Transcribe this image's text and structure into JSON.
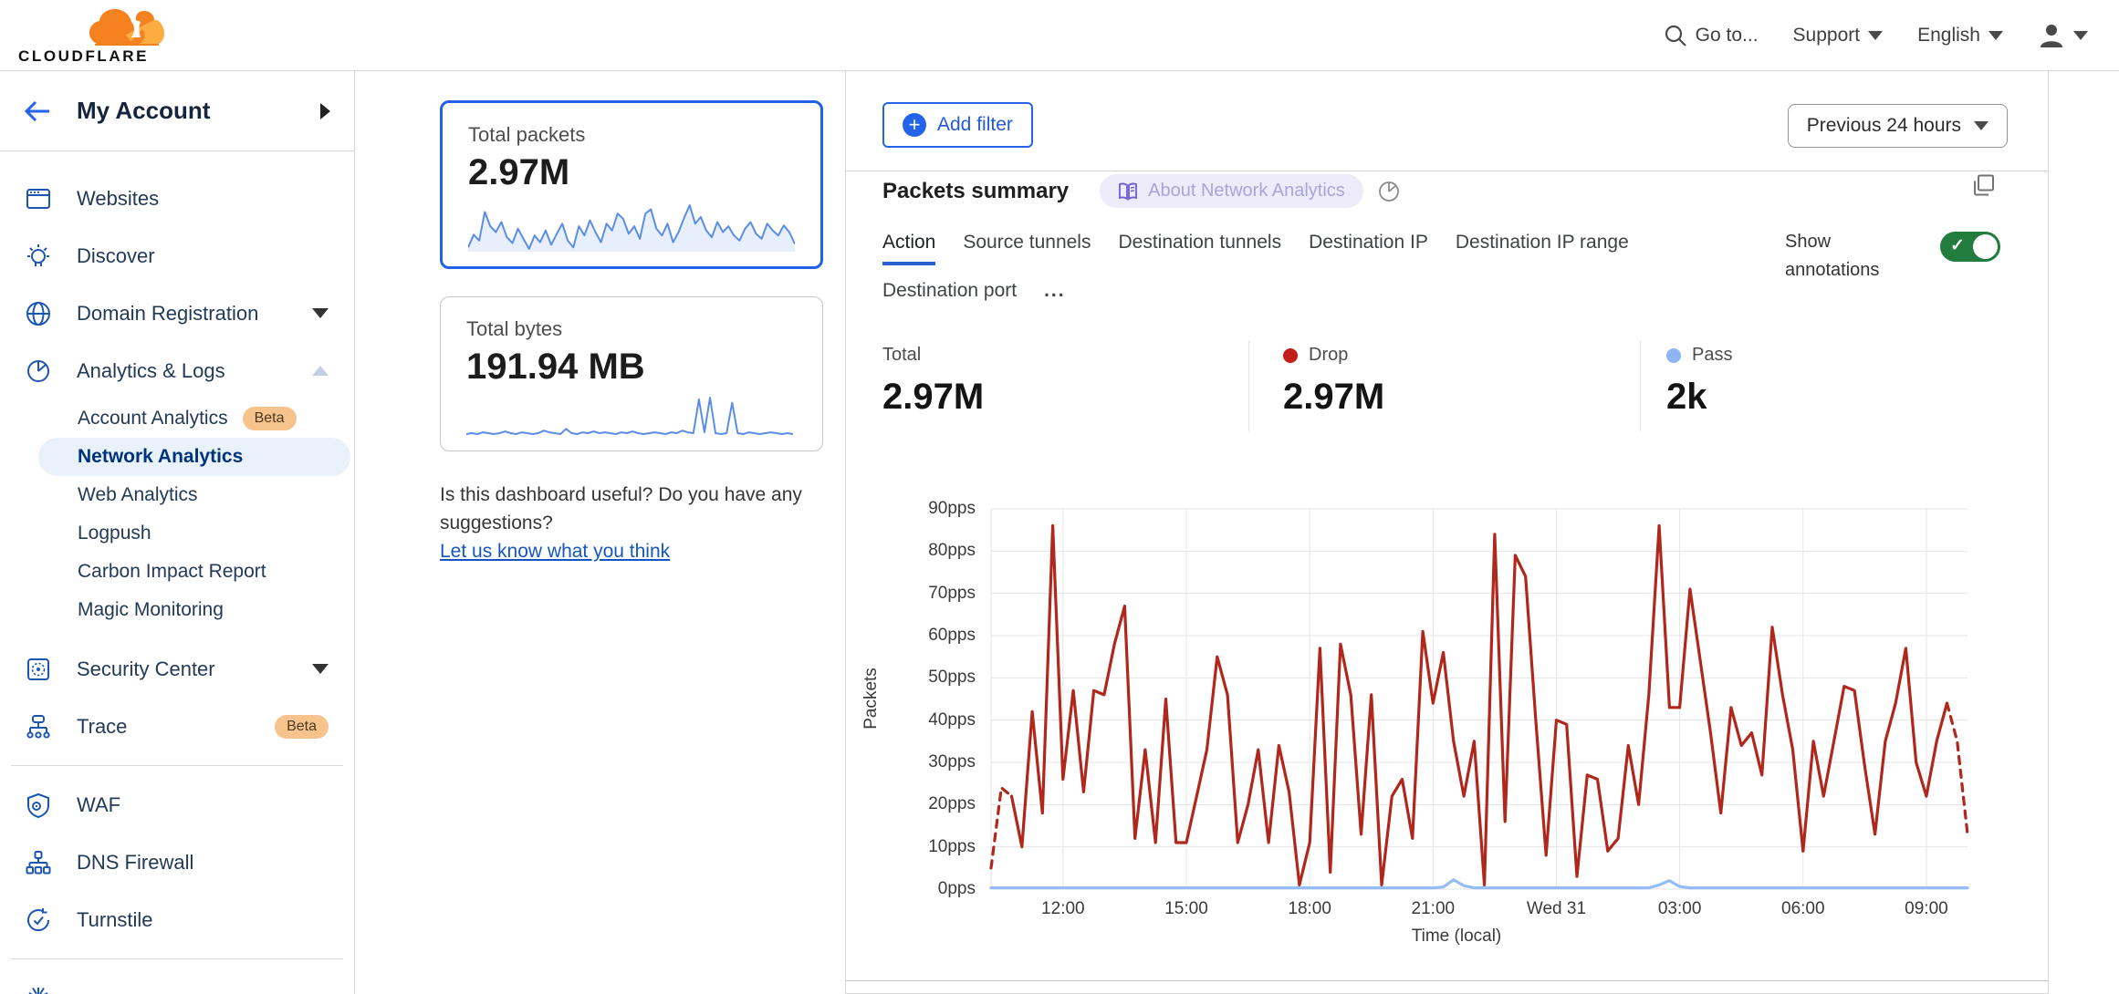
{
  "header": {
    "logo_text": "CLOUDFLARE",
    "goto": "Go to...",
    "support": "Support",
    "language": "English"
  },
  "sidebar": {
    "account_label": "My Account",
    "items": [
      {
        "label": "Websites"
      },
      {
        "label": "Discover"
      },
      {
        "label": "Domain Registration"
      },
      {
        "label": "Analytics & Logs"
      }
    ],
    "analytics_children": [
      {
        "label": "Account Analytics",
        "badge": "Beta"
      },
      {
        "label": "Network Analytics",
        "selected": true
      },
      {
        "label": "Web Analytics"
      },
      {
        "label": "Logpush"
      },
      {
        "label": "Carbon Impact Report"
      },
      {
        "label": "Magic Monitoring"
      }
    ],
    "items2": [
      {
        "label": "Security Center"
      },
      {
        "label": "Trace",
        "badge": "Beta"
      }
    ],
    "items3": [
      {
        "label": "WAF"
      },
      {
        "label": "DNS Firewall"
      },
      {
        "label": "Turnstile"
      }
    ]
  },
  "summary_cards": [
    {
      "label": "Total packets",
      "value": "2.97M",
      "selected": true,
      "sparkline": [
        30,
        45,
        38,
        72,
        55,
        48,
        60,
        42,
        35,
        52,
        40,
        28,
        44,
        36,
        50,
        33,
        46,
        58,
        38,
        30,
        55,
        44,
        62,
        48,
        36,
        58,
        50,
        70,
        64,
        46,
        55,
        40,
        70,
        75,
        52,
        44,
        58,
        36,
        48,
        65,
        80,
        58,
        66,
        50,
        42,
        60,
        48,
        55,
        44,
        38,
        52,
        60,
        46,
        40,
        58,
        50,
        44,
        56,
        48,
        34
      ]
    },
    {
      "label": "Total bytes",
      "value": "191.94 MB",
      "selected": false,
      "sparkline": [
        8,
        9,
        8,
        10,
        9,
        8,
        9,
        11,
        9,
        8,
        10,
        9,
        8,
        9,
        12,
        10,
        9,
        8,
        14,
        9,
        8,
        10,
        9,
        11,
        9,
        10,
        9,
        8,
        10,
        9,
        11,
        9,
        8,
        9,
        10,
        9,
        8,
        10,
        9,
        12,
        10,
        9,
        48,
        10,
        50,
        9,
        8,
        9,
        44,
        9,
        8,
        10,
        9,
        8,
        9,
        10,
        9,
        8,
        9,
        8
      ]
    }
  ],
  "feedback": {
    "line1": "Is this dashboard useful? Do you have any",
    "line2": "suggestions?",
    "link": "Let us know what you think"
  },
  "toolbar": {
    "add_filter": "Add filter",
    "time_range": "Previous 24 hours"
  },
  "panel": {
    "title": "Packets summary",
    "about_badge": "About Network Analytics",
    "tabs": [
      "Action",
      "Source tunnels",
      "Destination tunnels",
      "Destination IP",
      "Destination IP range",
      "Destination port"
    ],
    "more_tabs": "...",
    "show_annotations": "Show annotations",
    "stats": [
      {
        "label": "Total",
        "value": "2.97M",
        "dot": ""
      },
      {
        "label": "Drop",
        "value": "2.97M",
        "dot": "#c11f1a"
      },
      {
        "label": "Pass",
        "value": "2k",
        "dot": "#8fb3f3"
      }
    ]
  },
  "chart_data": {
    "type": "line",
    "title": "Packets summary",
    "xlabel": "Time (local)",
    "ylabel": "Packets",
    "ylim": [
      0,
      90
    ],
    "grid": true,
    "y_ticks": [
      "0pps",
      "10pps",
      "20pps",
      "30pps",
      "40pps",
      "50pps",
      "60pps",
      "70pps",
      "80pps",
      "90pps"
    ],
    "x_ticks": [
      {
        "label": "12:00",
        "idx": 7
      },
      {
        "label": "15:00",
        "idx": 19
      },
      {
        "label": "18:00",
        "idx": 31
      },
      {
        "label": "21:00",
        "idx": 43
      },
      {
        "label": "Wed 31",
        "idx": 55
      },
      {
        "label": "03:00",
        "idx": 67
      },
      {
        "label": "06:00",
        "idx": 79
      },
      {
        "label": "09:00",
        "idx": 91
      }
    ],
    "series": [
      {
        "name": "Drop",
        "color": "#b0271c",
        "dashed_head": 2,
        "dashed_tail": 2,
        "values": [
          5,
          24,
          22,
          10,
          42,
          18,
          86,
          26,
          47,
          23,
          47,
          46,
          58,
          67,
          12,
          33,
          11,
          45,
          11,
          11,
          22,
          33,
          55,
          46,
          11,
          20,
          33,
          11,
          34,
          23,
          1,
          11,
          57,
          4,
          58,
          46,
          13,
          46,
          1,
          22,
          26,
          12,
          61,
          44,
          56,
          35,
          22,
          35,
          1,
          84,
          16,
          79,
          74,
          40,
          8,
          40,
          39,
          3,
          27,
          26,
          9,
          12,
          34,
          20,
          46,
          86,
          43,
          43,
          71,
          54,
          37,
          18,
          43,
          34,
          37,
          27,
          62,
          46,
          33,
          9,
          35,
          22,
          35,
          48,
          47,
          29,
          13,
          35,
          44,
          57,
          30,
          22,
          35,
          44,
          35,
          13
        ]
      },
      {
        "name": "Pass",
        "color": "#94bdf5",
        "dashed_head": 0,
        "dashed_tail": 0,
        "values": [
          0.3,
          0.3,
          0.3,
          0.3,
          0.3,
          0.3,
          0.3,
          0.3,
          0.3,
          0.3,
          0.3,
          0.3,
          0.3,
          0.3,
          0.3,
          0.3,
          0.3,
          0.3,
          0.3,
          0.3,
          0.3,
          0.3,
          0.3,
          0.3,
          0.3,
          0.3,
          0.3,
          0.3,
          0.3,
          0.3,
          0.3,
          0.3,
          0.3,
          0.3,
          0.3,
          0.3,
          0.3,
          0.3,
          0.3,
          0.3,
          0.3,
          0.3,
          0.3,
          0.3,
          0.5,
          2.2,
          0.8,
          0.3,
          0.3,
          0.3,
          0.3,
          0.3,
          0.3,
          0.3,
          0.3,
          0.3,
          0.3,
          0.3,
          0.3,
          0.3,
          0.3,
          0.3,
          0.3,
          0.3,
          0.3,
          1.0,
          2.0,
          0.6,
          0.3,
          0.3,
          0.3,
          0.3,
          0.3,
          0.3,
          0.3,
          0.3,
          0.3,
          0.3,
          0.3,
          0.3,
          0.3,
          0.3,
          0.3,
          0.3,
          0.3,
          0.3,
          0.3,
          0.3,
          0.3,
          0.3,
          0.3,
          0.3,
          0.3,
          0.3,
          0.3,
          0.3
        ]
      }
    ]
  }
}
